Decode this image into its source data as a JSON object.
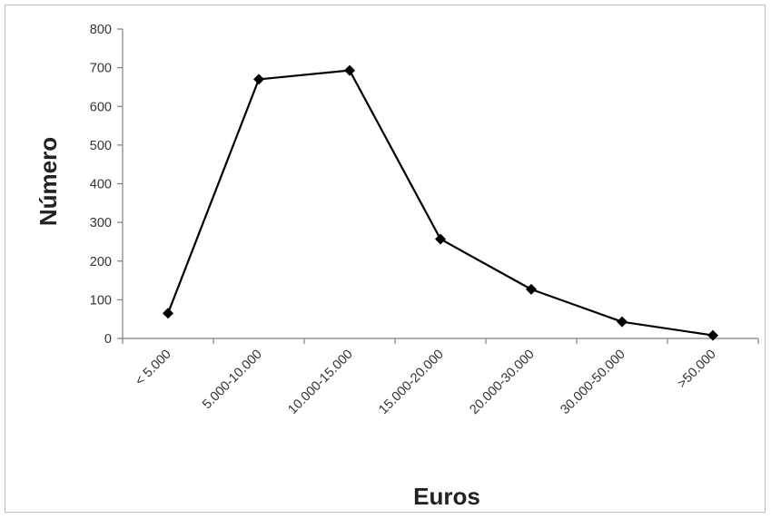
{
  "chart_data": {
    "type": "line",
    "title": "",
    "xlabel": "Euros",
    "ylabel": "Número",
    "categories": [
      "< 5.000",
      "5.000-10.000",
      "10.000-15.000",
      "15.000-20.000",
      "20.000-30.000",
      "30.000-50.000",
      ">50.000"
    ],
    "series": [
      {
        "values": [
          65,
          670,
          693,
          257,
          127,
          43,
          8
        ],
        "color": "#000000",
        "marker": "diamond"
      }
    ],
    "ylim": [
      0,
      800
    ],
    "yticks": [
      "0",
      "100",
      "200",
      "300",
      "400",
      "500",
      "600",
      "700",
      "800"
    ],
    "grid": false,
    "legend": "none"
  }
}
